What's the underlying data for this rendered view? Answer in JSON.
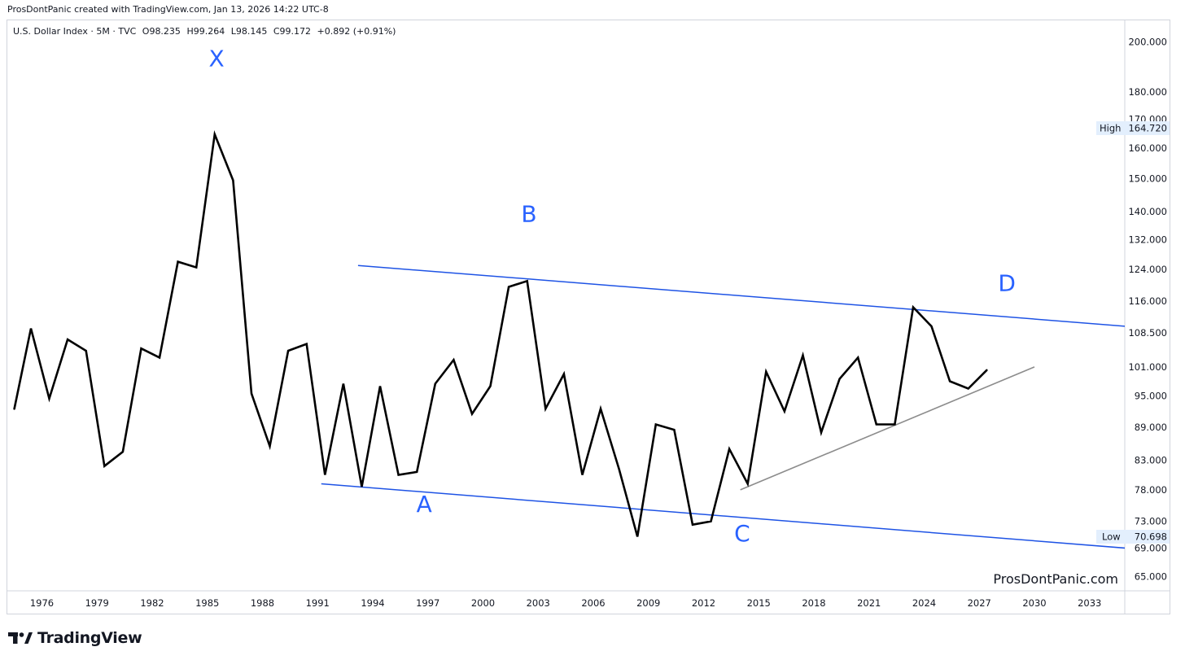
{
  "header": {
    "credit": "ProsDontPanic created with TradingView.com, Jan 13, 2026 14:22 UTC-8"
  },
  "legend": {
    "symbol": "U.S. Dollar Index · 5M · TVC",
    "open": "O98.235",
    "high": "H99.264",
    "low": "L98.145",
    "close": "C99.172",
    "change": "+0.892 (+0.91%)"
  },
  "footer": {
    "brand": "TradingView"
  },
  "colors": {
    "price_line": "#000000",
    "channel": "#1e53e5",
    "trendline": "#8c8c8c",
    "wave_label": "#2962ff",
    "axis_text": "#131722",
    "badge_bg": "#e3effd"
  },
  "icons": {
    "brand_logo": "tradingview-logo-icon"
  },
  "chart_data": {
    "type": "line",
    "symbol": "U.S. Dollar Index",
    "interval": "5M",
    "y_scale": "log",
    "ylim": [
      63,
      205
    ],
    "xlim": [
      1974.5,
      2035
    ],
    "grid": false,
    "x_ticks": [
      "1976",
      "1979",
      "1982",
      "1985",
      "1988",
      "1991",
      "1994",
      "1997",
      "2000",
      "2003",
      "2006",
      "2009",
      "2012",
      "2015",
      "2018",
      "2021",
      "2024",
      "2027",
      "2030",
      "2033"
    ],
    "y_ticks": [
      "200.000",
      "180.000",
      "170.000",
      "160.000",
      "150.000",
      "140.000",
      "132.000",
      "124.000",
      "116.000",
      "108.500",
      "101.000",
      "95.000",
      "89.000",
      "83.000",
      "78.000",
      "73.000",
      "69.000",
      "65.000"
    ],
    "high_label": {
      "label": "High",
      "value": "164.720",
      "y": 164.72
    },
    "low_label": {
      "label": "Low",
      "value": "70.698",
      "y": 70.698
    },
    "watermark": "ProsDontPanic.com",
    "series": [
      {
        "points": [
          [
            1974.5,
            92.5
          ],
          [
            1975.4,
            109.5
          ],
          [
            1976.4,
            94.5
          ],
          [
            1977.4,
            107.0
          ],
          [
            1978.4,
            104.5
          ],
          [
            1979.4,
            82.0
          ],
          [
            1980.4,
            84.5
          ],
          [
            1981.4,
            105.0
          ],
          [
            1982.4,
            103.0
          ],
          [
            1983.4,
            126.0
          ],
          [
            1984.4,
            124.5
          ],
          [
            1985.4,
            164.7
          ],
          [
            1986.4,
            149.5
          ],
          [
            1987.4,
            95.5
          ],
          [
            1988.4,
            85.5
          ],
          [
            1989.4,
            104.5
          ],
          [
            1990.4,
            106.0
          ],
          [
            1991.4,
            80.5
          ],
          [
            1992.4,
            97.5
          ],
          [
            1993.4,
            78.5
          ],
          [
            1994.4,
            97.0
          ],
          [
            1995.4,
            80.5
          ],
          [
            1996.4,
            81.0
          ],
          [
            1997.4,
            97.5
          ],
          [
            1998.4,
            102.5
          ],
          [
            1999.4,
            91.5
          ],
          [
            2000.4,
            97.0
          ],
          [
            2001.4,
            119.5
          ],
          [
            2002.4,
            121.0
          ],
          [
            2003.4,
            92.5
          ],
          [
            2004.4,
            99.5
          ],
          [
            2005.4,
            80.5
          ],
          [
            2006.4,
            92.5
          ],
          [
            2007.4,
            81.5
          ],
          [
            2008.4,
            70.7
          ],
          [
            2009.4,
            89.5
          ],
          [
            2010.4,
            88.5
          ],
          [
            2011.4,
            72.5
          ],
          [
            2012.4,
            73.0
          ],
          [
            2013.4,
            85.0
          ],
          [
            2014.4,
            79.0
          ],
          [
            2015.4,
            100.0
          ],
          [
            2016.4,
            92.0
          ],
          [
            2017.4,
            103.5
          ],
          [
            2018.4,
            88.0
          ],
          [
            2019.4,
            98.5
          ],
          [
            2020.4,
            103.0
          ],
          [
            2021.4,
            89.5
          ],
          [
            2022.4,
            89.5
          ],
          [
            2023.4,
            114.5
          ],
          [
            2024.4,
            110.0
          ],
          [
            2025.4,
            98.0
          ],
          [
            2026.4,
            96.5
          ],
          [
            2027.4,
            100.3
          ]
        ]
      }
    ],
    "trendlines": [
      {
        "role": "channel-upper",
        "from": [
          1993.2,
          125.0
        ],
        "to": [
          2035,
          110.0
        ]
      },
      {
        "role": "channel-lower",
        "from": [
          1991.2,
          79.0
        ],
        "to": [
          2035,
          69.0
        ]
      },
      {
        "role": "support",
        "from": [
          2014.0,
          78.0
        ],
        "to": [
          2030.0,
          101.0
        ]
      }
    ],
    "annotations": [
      {
        "text": "X",
        "x": 1985.5,
        "y": 190.0
      },
      {
        "text": "B",
        "x": 2002.5,
        "y": 137.0
      },
      {
        "text": "D",
        "x": 2028.5,
        "y": 118.5
      },
      {
        "text": "A",
        "x": 1996.8,
        "y": 74.5
      },
      {
        "text": "C",
        "x": 2014.1,
        "y": 70.0
      }
    ]
  }
}
